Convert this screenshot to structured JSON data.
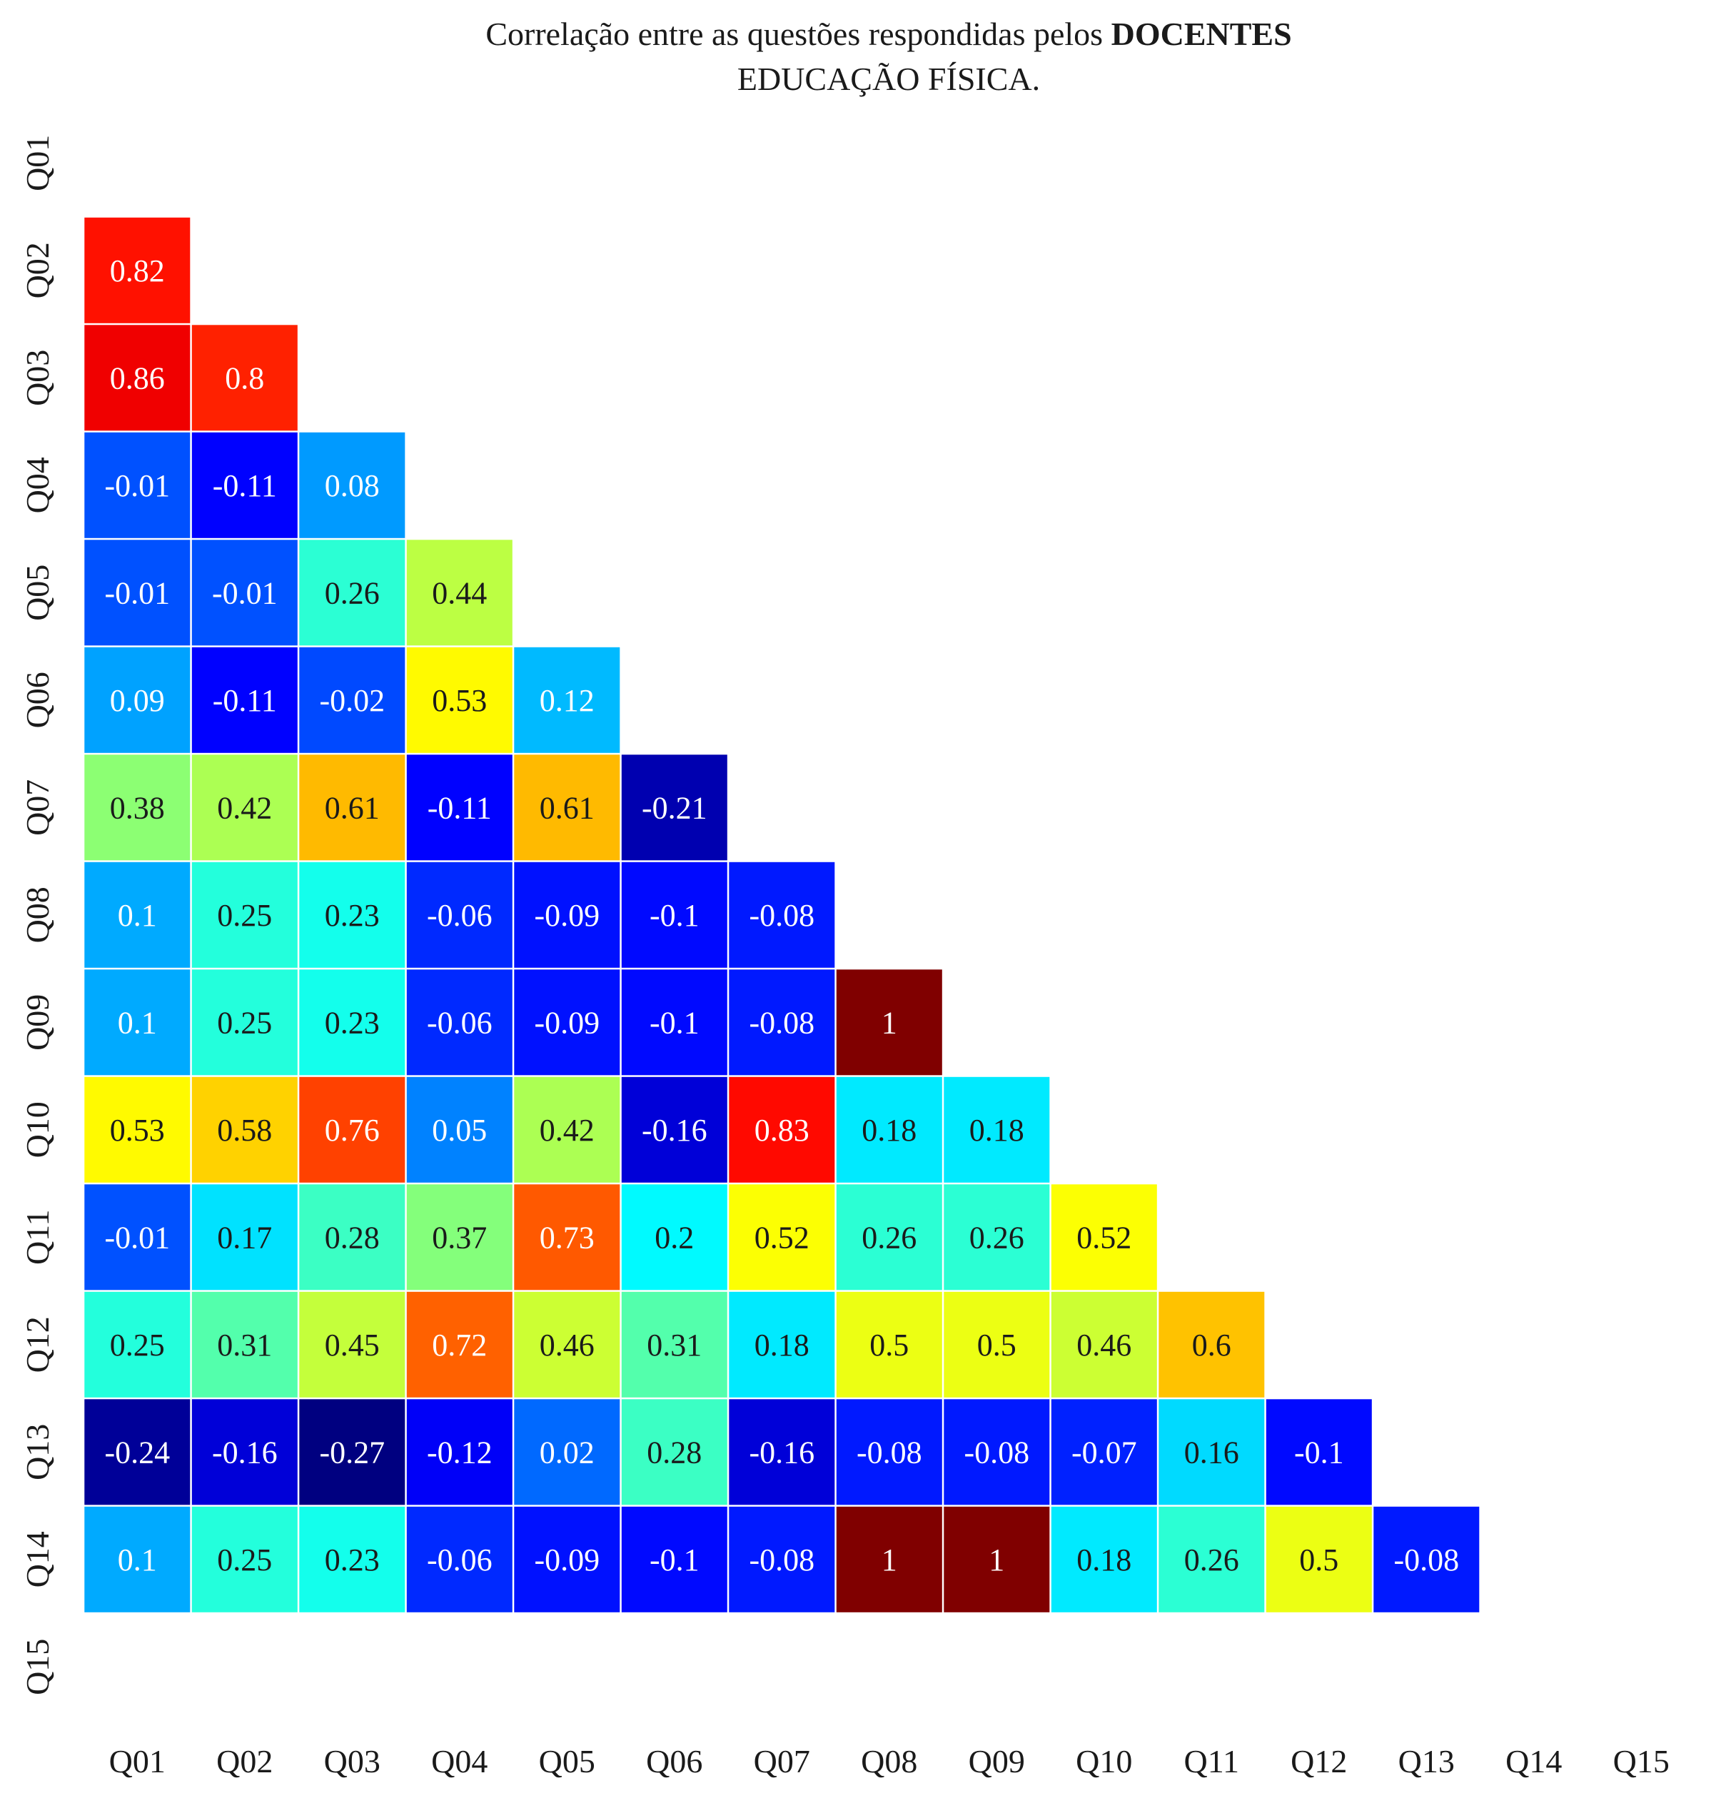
{
  "chart_data": {
    "type": "heatmap",
    "title_line1_prefix": "Correlação entre as questões respondidas pelos ",
    "title_line1_bold": "DOCENTES",
    "title_line2": "EDUCAÇÃO FÍSICA.",
    "xlabel": "",
    "ylabel": "",
    "grid": false,
    "colormap": "jet",
    "value_range": [
      -0.27,
      1
    ],
    "mask": "lower-triangle",
    "labels": [
      "Q01",
      "Q02",
      "Q03",
      "Q04",
      "Q05",
      "Q06",
      "Q07",
      "Q08",
      "Q09",
      "Q10",
      "Q11",
      "Q12",
      "Q13",
      "Q14",
      "Q15"
    ],
    "rows": [
      [],
      [
        "0.82"
      ],
      [
        "0.86",
        "0.8"
      ],
      [
        "-0.01",
        "-0.11",
        "0.08"
      ],
      [
        "-0.01",
        "-0.01",
        "0.26",
        "0.44"
      ],
      [
        "0.09",
        "-0.11",
        "-0.02",
        "0.53",
        "0.12"
      ],
      [
        "0.38",
        "0.42",
        "0.61",
        "-0.11",
        "0.61",
        "-0.21"
      ],
      [
        "0.1",
        "0.25",
        "0.23",
        "-0.06",
        "-0.09",
        "-0.1",
        "-0.08"
      ],
      [
        "0.1",
        "0.25",
        "0.23",
        "-0.06",
        "-0.09",
        "-0.1",
        "-0.08",
        "1"
      ],
      [
        "0.53",
        "0.58",
        "0.76",
        "0.05",
        "0.42",
        "-0.16",
        "0.83",
        "0.18",
        "0.18"
      ],
      [
        "-0.01",
        "0.17",
        "0.28",
        "0.37",
        "0.73",
        "0.2",
        "0.52",
        "0.26",
        "0.26",
        "0.52"
      ],
      [
        "0.25",
        "0.31",
        "0.45",
        "0.72",
        "0.46",
        "0.31",
        "0.18",
        "0.5",
        "0.5",
        "0.46",
        "0.6"
      ],
      [
        "-0.24",
        "-0.16",
        "-0.27",
        "-0.12",
        "0.02",
        "0.28",
        "-0.16",
        "-0.08",
        "-0.08",
        "-0.07",
        "0.16",
        "-0.1"
      ],
      [
        "0.1",
        "0.25",
        "0.23",
        "-0.06",
        "-0.09",
        "-0.1",
        "-0.08",
        "1",
        "1",
        "0.18",
        "0.26",
        "0.5",
        "-0.08"
      ],
      []
    ]
  }
}
